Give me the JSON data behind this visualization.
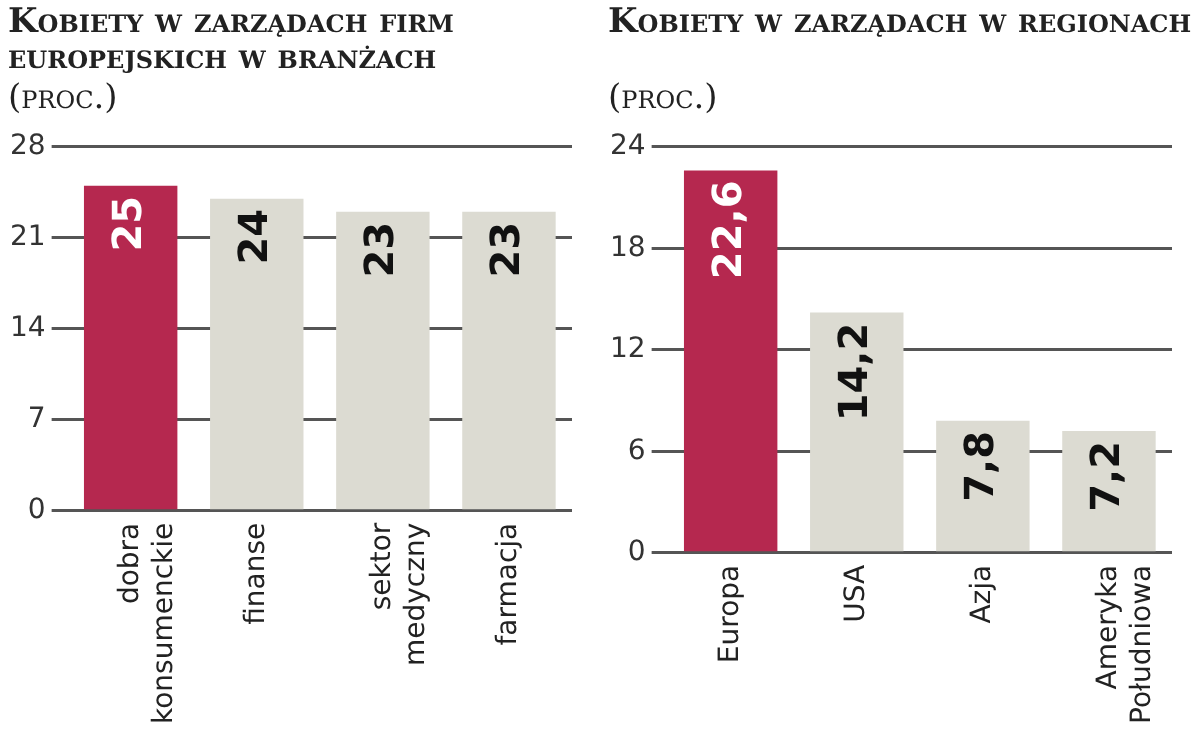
{
  "chart_data": [
    {
      "type": "bar",
      "title": "Kobiety w zarządach firm europejskich w branżach",
      "subtitle": "(proc.)",
      "categories": [
        "dobra konsumenckie",
        "finanse",
        "sektor medyczny",
        "farmacja"
      ],
      "values": [
        25,
        24,
        23,
        23
      ],
      "value_labels": [
        "25",
        "24",
        "23",
        "23"
      ],
      "colors": [
        "#b5284f",
        "#dcdbd2",
        "#dcdbd2",
        "#dcdbd2"
      ],
      "ylim": [
        0,
        28
      ],
      "yticks": [
        0,
        7,
        14,
        21,
        28
      ],
      "grid": "y"
    },
    {
      "type": "bar",
      "title": "Kobiety w zarządach w regionach",
      "subtitle": "(proc.)",
      "categories": [
        "Europa",
        "USA",
        "Azja",
        "Ameryka Południowa"
      ],
      "values": [
        22.6,
        14.2,
        7.8,
        7.2
      ],
      "value_labels": [
        "22,6",
        "14,2",
        "7,8",
        "7,2"
      ],
      "colors": [
        "#b5284f",
        "#dcdbd2",
        "#dcdbd2",
        "#dcdbd2"
      ],
      "ylim": [
        0,
        24
      ],
      "yticks": [
        0,
        6,
        12,
        18,
        24
      ],
      "grid": "y"
    }
  ]
}
